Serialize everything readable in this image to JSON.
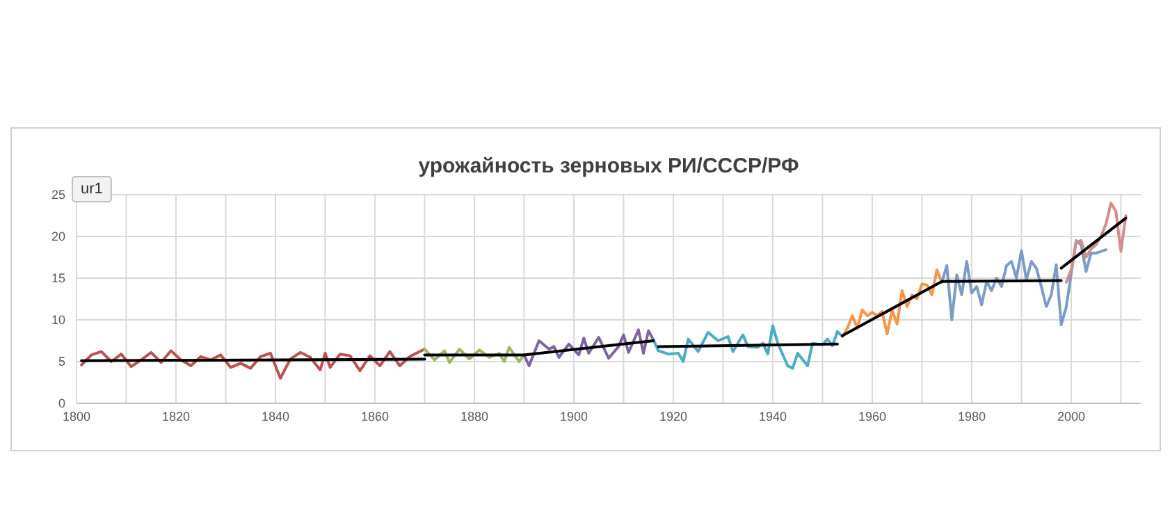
{
  "chart_data": {
    "type": "line",
    "title": "урожайность зерновых РИ/СССР/РФ",
    "annotations": [
      "ur1"
    ],
    "xlim": [
      1800,
      2014
    ],
    "xticks": [
      1800,
      {
        "value": 1810,
        "label": null
      },
      1820,
      {
        "value": 1830,
        "label": null
      },
      1840,
      {
        "value": 1850,
        "label": null
      },
      1860,
      {
        "value": 1870,
        "label": null
      },
      1880,
      {
        "value": 1890,
        "label": null
      },
      1900,
      {
        "value": 1910,
        "label": null
      },
      1920,
      {
        "value": 1930,
        "label": null
      },
      1940,
      {
        "value": 1950,
        "label": null
      },
      1960,
      {
        "value": 1970,
        "label": null
      },
      1980,
      {
        "value": 1990,
        "label": null
      },
      2000,
      {
        "value": 2010,
        "label": null
      }
    ],
    "ylim": [
      0,
      25
    ],
    "yticks": [
      0,
      5,
      10,
      15,
      20,
      25
    ],
    "grid": true,
    "marker": "none",
    "line_style": "solid",
    "series": [
      {
        "color": "#c0504d",
        "x": [
          1801,
          1803,
          1805,
          1807,
          1809,
          1811,
          1813,
          1815,
          1817,
          1819,
          1821,
          1823,
          1825,
          1827,
          1829,
          1831,
          1833,
          1835,
          1837,
          1839,
          1841,
          1843,
          1845,
          1847,
          1849,
          1850,
          1851,
          1853,
          1855,
          1857,
          1859,
          1861,
          1863,
          1865,
          1867,
          1870
        ],
        "values": [
          4.6,
          5.8,
          6.2,
          5.0,
          5.9,
          4.4,
          5.2,
          6.1,
          4.9,
          6.3,
          5.2,
          4.5,
          5.6,
          5.2,
          5.8,
          4.3,
          4.8,
          4.2,
          5.6,
          6.0,
          3.0,
          5.3,
          6.1,
          5.5,
          4.0,
          6.0,
          4.3,
          5.9,
          5.7,
          3.9,
          5.7,
          4.5,
          6.2,
          4.5,
          5.6,
          6.5
        ]
      },
      {
        "color": "#9bbb59",
        "x": [
          1870,
          1872,
          1874,
          1875,
          1877,
          1879,
          1881,
          1883,
          1885,
          1886,
          1887,
          1889,
          1890
        ],
        "values": [
          6.5,
          5.2,
          6.3,
          4.9,
          6.5,
          5.3,
          6.4,
          5.5,
          6.0,
          5.0,
          6.7,
          5.0,
          5.8
        ]
      },
      {
        "color": "#8064a2",
        "x": [
          1890,
          1891,
          1893,
          1895,
          1896,
          1897,
          1899,
          1901,
          1902,
          1903,
          1905,
          1907,
          1909,
          1910,
          1911,
          1913,
          1914,
          1915,
          1916
        ],
        "values": [
          5.8,
          4.5,
          7.5,
          6.5,
          6.8,
          5.5,
          7.1,
          5.8,
          7.8,
          6.0,
          7.9,
          5.4,
          6.8,
          8.2,
          6.1,
          8.8,
          6.0,
          8.7,
          7.6
        ]
      },
      {
        "color": "#4bacc6",
        "x": [
          1916,
          1917,
          1919,
          1921,
          1922,
          1923,
          1925,
          1927,
          1929,
          1931,
          1932,
          1934,
          1935,
          1937,
          1938,
          1939,
          1940,
          1941,
          1943,
          1944,
          1945,
          1947,
          1948,
          1950,
          1951,
          1952,
          1953,
          1954
        ],
        "values": [
          7.6,
          6.3,
          5.9,
          6.0,
          5.0,
          7.7,
          6.2,
          8.5,
          7.5,
          8.0,
          6.2,
          8.2,
          6.8,
          6.7,
          7.2,
          5.9,
          9.3,
          7.2,
          4.5,
          4.2,
          6.0,
          4.5,
          7.2,
          7.0,
          7.7,
          6.9,
          8.6,
          8.0
        ]
      },
      {
        "color": "#f79646",
        "x": [
          1954,
          1955,
          1956,
          1957,
          1958,
          1959,
          1960,
          1961,
          1962,
          1963,
          1964,
          1965,
          1966,
          1967,
          1968,
          1969,
          1970,
          1971,
          1972,
          1973,
          1974
        ],
        "values": [
          8.0,
          9.0,
          10.5,
          9.0,
          11.2,
          10.5,
          10.9,
          10.5,
          11.0,
          8.3,
          11.2,
          9.5,
          13.5,
          11.6,
          13.0,
          12.5,
          14.3,
          14.2,
          13.0,
          16.0,
          14.5
        ]
      },
      {
        "color": "#7b9cc8",
        "x": [
          1974,
          1975,
          1976,
          1977,
          1978,
          1979,
          1980,
          1981,
          1982,
          1983,
          1984,
          1985,
          1986,
          1987,
          1988,
          1989,
          1990,
          1991,
          1992,
          1993,
          1994,
          1995,
          1996,
          1997,
          1998,
          1999,
          2000,
          2001,
          2002,
          2003,
          2004,
          2005,
          2006,
          2007
        ],
        "values": [
          14.5,
          16.5,
          10.0,
          15.4,
          13.0,
          17.0,
          13.2,
          14.0,
          11.8,
          14.6,
          13.5,
          15.0,
          14.0,
          16.5,
          17.0,
          15.0,
          18.3,
          14.8,
          17.0,
          16.2,
          14.0,
          11.6,
          13.0,
          16.6,
          9.4,
          11.5,
          15.5,
          19.5,
          19.0,
          15.8,
          18.0,
          18.0,
          18.2,
          18.4
        ]
      },
      {
        "color": "#d48c8c",
        "x": [
          1999,
          2000,
          2001,
          2002,
          2003,
          2004,
          2005,
          2006,
          2007,
          2008,
          2009,
          2010,
          2011
        ],
        "values": [
          14.5,
          16.0,
          19.3,
          19.5,
          17.5,
          18.5,
          19.0,
          20.0,
          21.5,
          24.0,
          23.0,
          18.2,
          22.5
        ]
      },
      {
        "color": "#000000",
        "x": [
          1801,
          1870
        ],
        "values": [
          5.1,
          5.3
        ]
      },
      {
        "color": "#000000",
        "x": [
          1870,
          1890,
          1916
        ],
        "values": [
          5.8,
          5.8,
          7.5
        ]
      },
      {
        "color": "#000000",
        "x": [
          1917,
          1953
        ],
        "values": [
          6.8,
          7.1
        ]
      },
      {
        "color": "#000000",
        "x": [
          1954,
          1974,
          1998
        ],
        "values": [
          8.1,
          14.6,
          14.7
        ]
      },
      {
        "color": "#000000",
        "x": [
          1998,
          2011
        ],
        "values": [
          16.2,
          22.2
        ]
      }
    ]
  }
}
